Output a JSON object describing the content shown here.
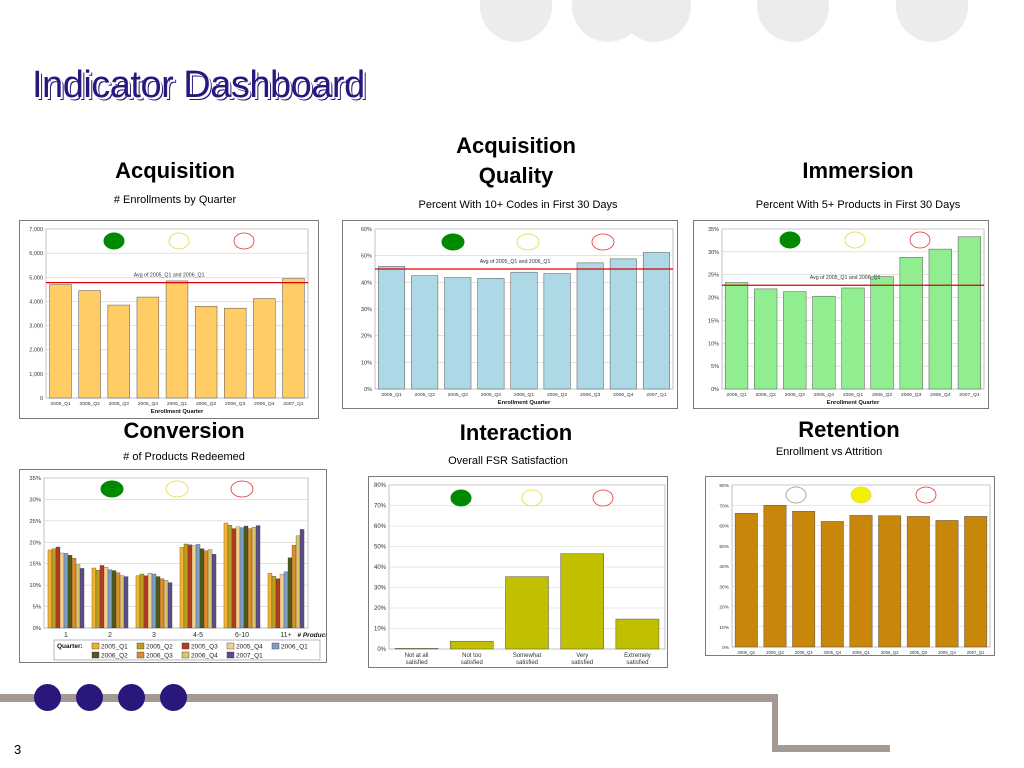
{
  "slide": {
    "title": "Indicator Dashboard",
    "page_number": "3"
  },
  "panels": {
    "acquisition": {
      "heading": "Acquisition",
      "subtitle": "# Enrollments by Quarter"
    },
    "acquisition_quality": {
      "heading_line1": "Acquisition",
      "heading_line2": "Quality",
      "subtitle": "Percent With 10+ Codes in First 30 Days"
    },
    "immersion": {
      "heading": "Immersion",
      "subtitle": "Percent With 5+ Products in First 30 Days"
    },
    "conversion": {
      "heading": "Conversion",
      "subtitle": "# of Products Redeemed"
    },
    "interaction": {
      "heading": "Interaction",
      "subtitle": "Overall FSR Satisfaction"
    },
    "retention": {
      "heading": "Retention",
      "subtitle": "Enrollment vs Attrition"
    }
  },
  "colors": {
    "title": "#2a177c",
    "status_green": "#008a00",
    "status_yellow": "#f2f200",
    "status_yellow_outline": "#e8e060",
    "status_red_outline": "#e03030",
    "avg_line": "#e00000",
    "acquisition_bar": "#ffcc66",
    "quality_bar": "#add8e6",
    "immersion_bar": "#90ee90",
    "interaction_bar": "#c0c000",
    "retention_bar": "#c8860a",
    "footer_dot": "#2a177c"
  },
  "chart_data": [
    {
      "id": "acquisition",
      "type": "bar",
      "categories": [
        "2005_Q1",
        "2005_Q2",
        "2005_Q3",
        "2005_Q4",
        "2006_Q1",
        "2006_Q2",
        "2006_Q3",
        "2006_Q4",
        "2007_Q1"
      ],
      "values": [
        4700,
        4450,
        3850,
        4180,
        4850,
        3800,
        3720,
        4120,
        4950
      ],
      "xlabel": "Enrollment Quarter",
      "ylim": [
        0,
        7000
      ],
      "yticks": [
        "0",
        "1,000",
        "2,000",
        "3,000",
        "4,000",
        "5,000",
        "6,000",
        "7,000"
      ],
      "avg_value": 4780,
      "avg_label": "Avg of 2005_Q1 and 2006_Q1",
      "status": "green",
      "grid": true
    },
    {
      "id": "acquisition_quality",
      "type": "bar",
      "categories": [
        "2005_Q1",
        "2005_Q2",
        "2005_Q3",
        "2005_Q4",
        "2006_Q1",
        "2006_Q2",
        "2006_Q3",
        "2006_Q4",
        "2007_Q1"
      ],
      "values": [
        46,
        42.5,
        41.8,
        41.5,
        43.8,
        43.3,
        47.3,
        48.8,
        51.2
      ],
      "xlabel": "Enrollment Quarter",
      "ylim": [
        0,
        60
      ],
      "yticks": [
        "0%",
        "10%",
        "20%",
        "30%",
        "40%",
        "50%",
        "60%"
      ],
      "avg_value": 45,
      "avg_label": "Avg of 2005_Q1 and 2006_Q1",
      "status": "green",
      "grid": true
    },
    {
      "id": "immersion",
      "type": "bar",
      "categories": [
        "2005_Q1",
        "2005_Q2",
        "2005_Q3",
        "2005_Q4",
        "2006_Q1",
        "2006_Q2",
        "2006_Q3",
        "2006_Q4",
        "2007_Q1"
      ],
      "values": [
        23.3,
        21.9,
        21.3,
        20.3,
        22.1,
        24.6,
        28.8,
        30.6,
        33.3
      ],
      "xlabel": "Enrollment Quarter",
      "ylim": [
        0,
        35
      ],
      "yticks": [
        "0%",
        "5%",
        "10%",
        "15%",
        "20%",
        "25%",
        "30%",
        "35%"
      ],
      "avg_value": 22.7,
      "avg_label": "Avg of 2005_Q1 and 2006_Q1",
      "status": "green",
      "grid": true
    },
    {
      "id": "conversion",
      "type": "bar",
      "categories": [
        "1",
        "2",
        "3",
        "4-5",
        "6-10",
        "11+"
      ],
      "xlabel": "# Products",
      "ylim": [
        0,
        35
      ],
      "yticks": [
        "0%",
        "5%",
        "10%",
        "15%",
        "20%",
        "25%",
        "30%",
        "35%"
      ],
      "legend_title": "Quarter:",
      "series": [
        {
          "name": "2005_Q1",
          "color": "#f2b134",
          "values": [
            18.2,
            14.0,
            12.2,
            18.8,
            24.5,
            12.8
          ]
        },
        {
          "name": "2005_Q2",
          "color": "#bba11c",
          "values": [
            18.5,
            13.5,
            12.6,
            19.6,
            24.0,
            12.1
          ]
        },
        {
          "name": "2005_Q3",
          "color": "#b23b22",
          "values": [
            18.9,
            14.6,
            12.2,
            19.4,
            23.2,
            11.5
          ]
        },
        {
          "name": "2005_Q4",
          "color": "#f5d28a",
          "values": [
            17.5,
            14.2,
            12.8,
            19.2,
            23.6,
            12.5
          ]
        },
        {
          "name": "2006_Q1",
          "color": "#7d9ec7",
          "values": [
            17.4,
            13.6,
            12.6,
            19.5,
            23.4,
            13.1
          ]
        },
        {
          "name": "2006_Q2",
          "color": "#4d5a1a",
          "values": [
            17.0,
            13.4,
            12.0,
            18.5,
            23.8,
            16.4
          ]
        },
        {
          "name": "2006_Q3",
          "color": "#e08b2a",
          "values": [
            16.3,
            12.9,
            11.5,
            18.0,
            23.2,
            19.3
          ]
        },
        {
          "name": "2006_Q4",
          "color": "#d9c46d",
          "values": [
            14.8,
            12.2,
            11.1,
            18.3,
            23.5,
            21.5
          ]
        },
        {
          "name": "2007_Q1",
          "color": "#5c4c8c",
          "values": [
            13.9,
            12.0,
            10.6,
            17.2,
            23.9,
            23.0
          ]
        }
      ],
      "status": "green",
      "grid": true
    },
    {
      "id": "interaction",
      "type": "bar",
      "categories": [
        "Not at all satisfied",
        "Not too satisfied",
        "Somewhat satisfied",
        "Very satisfied",
        "Extremely satisfied"
      ],
      "category_lines": [
        [
          "Not at all",
          "satisfied"
        ],
        [
          "Not too",
          "satisfied"
        ],
        [
          "Somewhat",
          "satisfied"
        ],
        [
          "Very",
          "satisfied"
        ],
        [
          "Extremely",
          "satisfied"
        ]
      ],
      "values": [
        0.3,
        3.8,
        35.3,
        46.5,
        14.6
      ],
      "ylim": [
        0,
        80
      ],
      "yticks": [
        "0%",
        "10%",
        "20%",
        "30%",
        "40%",
        "50%",
        "60%",
        "70%",
        "80%"
      ],
      "status": "green",
      "grid": true
    },
    {
      "id": "retention",
      "type": "bar",
      "categories": [
        "2005_Q1",
        "2005_Q2",
        "2005_Q3",
        "2005_Q4",
        "2006_Q1",
        "2006_Q2",
        "2006_Q3",
        "2006_Q4",
        "2007_Q1"
      ],
      "values": [
        66,
        70,
        67,
        62,
        65,
        64.8,
        64.5,
        62.5,
        64.5
      ],
      "ylim": [
        0,
        80
      ],
      "yticks": [
        "0%",
        "10%",
        "20%",
        "30%",
        "40%",
        "50%",
        "60%",
        "70%",
        "80%"
      ],
      "status": "yellow",
      "grid": true
    }
  ]
}
